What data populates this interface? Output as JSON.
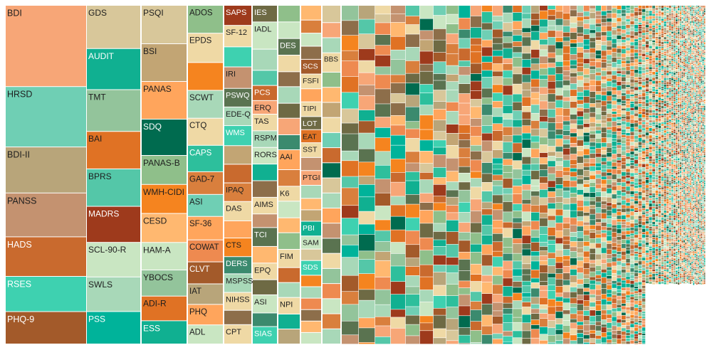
{
  "chart_data": {
    "type": "treemap",
    "palette": [
      "#f7a677",
      "#6fcfb4",
      "#b8a57a",
      "#c49270",
      "#c96a2e",
      "#3ed1b0",
      "#a35a2a",
      "#d8c79a",
      "#10b091",
      "#93c49b",
      "#e07224",
      "#54c7a8",
      "#9e3a1c",
      "#c9e6c2",
      "#a8d8b8",
      "#00b39a",
      "#c2a574",
      "#ffa55c",
      "#006b4f",
      "#8fbf8a",
      "#f5841f",
      "#ffb870",
      "#3b8a6e",
      "#6e6a44",
      "#ee8a50",
      "#5a7350",
      "#d97f3d",
      "#2dbf9c",
      "#efd9a5",
      "#8d6e4a"
    ],
    "light_text_colors": [
      "#10b091",
      "#3ed1b0",
      "#9e3a1c",
      "#006b4f",
      "#a35a2a",
      "#00b39a",
      "#3b8a6e",
      "#6e6a44",
      "#5a7350",
      "#2dbf9c",
      "#8d6e4a",
      "#c96a2e"
    ],
    "columns": [
      {
        "tiles": [
          {
            "label": "BDI",
            "value": 113,
            "color": "#f7a677"
          },
          {
            "label": "HRSD",
            "value": 84,
            "color": "#6fcfb4"
          },
          {
            "label": "BDI-II",
            "value": 64,
            "color": "#b8a57a"
          },
          {
            "label": "PANSS",
            "value": 61,
            "color": "#c49270"
          },
          {
            "label": "HADS",
            "value": 55,
            "color": "#c96a2e"
          },
          {
            "label": "RSES",
            "value": 49,
            "color": "#3ed1b0"
          },
          {
            "label": "PHQ-9",
            "value": 45,
            "color": "#a35a2a"
          }
        ]
      },
      {
        "tiles": [
          {
            "label": "GDS",
            "value": 60,
            "color": "#d8c79a"
          },
          {
            "label": "AUDIT",
            "value": 57,
            "color": "#10b091"
          },
          {
            "label": "TMT",
            "value": 58,
            "color": "#93c49b"
          },
          {
            "label": "BAI",
            "value": 52,
            "color": "#e07224"
          },
          {
            "label": "BPRS",
            "value": 52,
            "color": "#54c7a8"
          },
          {
            "label": "MADRS",
            "value": 50,
            "color": "#9e3a1c"
          },
          {
            "label": "SCL-90-R",
            "value": 48,
            "color": "#c9e6c2"
          },
          {
            "label": "SWLS",
            "value": 48,
            "color": "#a8d8b8"
          },
          {
            "label": "PSS",
            "value": 45,
            "color": "#00b39a"
          }
        ]
      },
      {
        "tiles": [
          {
            "label": "PSQI",
            "value": 53,
            "color": "#d8c79a"
          },
          {
            "label": "BSI",
            "value": 52,
            "color": "#c2a574"
          },
          {
            "label": "PANAS",
            "value": 52,
            "color": "#ffa55c"
          },
          {
            "label": "SDQ",
            "value": 50,
            "color": "#006b4f"
          },
          {
            "label": "PANAS-B",
            "value": 40,
            "color": "#8fbf8a"
          },
          {
            "label": "WMH-CIDI",
            "value": 40,
            "color": "#f5841f"
          },
          {
            "label": "CESD",
            "value": 40,
            "color": "#ffb870"
          },
          {
            "label": "HAM-A",
            "value": 38,
            "color": "#c9e6c2"
          },
          {
            "label": "YBOCS",
            "value": 36,
            "color": "#93c49b"
          },
          {
            "label": "ADI-R",
            "value": 34,
            "color": "#e07224"
          },
          {
            "label": "ESS",
            "value": 32,
            "color": "#10b091"
          }
        ]
      },
      {
        "tiles": [
          {
            "label": "ADOS",
            "value": 38,
            "color": "#8fbf8a"
          },
          {
            "label": "EPDS",
            "value": 40,
            "color": "#efd9a5"
          },
          {
            "label": "",
            "value": 38,
            "color": "#f5841f"
          },
          {
            "label": "SCWT",
            "value": 38,
            "color": "#a8d8b8"
          },
          {
            "label": "CTQ",
            "value": 37,
            "color": "#efd9a5"
          },
          {
            "label": "CAPS",
            "value": 36,
            "color": "#2dbf9c"
          },
          {
            "label": "GAD-7",
            "value": 31,
            "color": "#d97f3d"
          },
          {
            "label": "ASI",
            "value": 30,
            "color": "#6fcfb4"
          },
          {
            "label": "SF-36",
            "value": 32,
            "color": "#ffa55c"
          },
          {
            "label": "COWAT",
            "value": 30,
            "color": "#ee8a50"
          },
          {
            "label": "CLVT",
            "value": 30,
            "color": "#a35a2a"
          },
          {
            "label": "IAT",
            "value": 28,
            "color": "#b8a57a"
          },
          {
            "label": "PHQ",
            "value": 28,
            "color": "#ffa55c"
          },
          {
            "label": "ADL",
            "value": 26,
            "color": "#c9e6c2"
          }
        ]
      },
      {
        "tiles": [
          {
            "label": "SAPS",
            "value": 28,
            "color": "#9e3a1c"
          },
          {
            "label": "SF-12",
            "value": 30,
            "color": "#efd9a5"
          },
          {
            "label": "",
            "value": 28,
            "color": "#3ed1b0"
          },
          {
            "label": "IRI",
            "value": 30,
            "color": "#c49270"
          },
          {
            "label": "PSWQ",
            "value": 26,
            "color": "#5a7350"
          },
          {
            "label": "EDE-Q",
            "value": 26,
            "color": "#a8d8b8"
          },
          {
            "label": "WMS",
            "value": 28,
            "color": "#3ed1b0"
          },
          {
            "label": "",
            "value": 26,
            "color": "#c2a574"
          },
          {
            "label": "",
            "value": 26,
            "color": "#c96a2e"
          },
          {
            "label": "IPAQ",
            "value": 26,
            "color": "#d97f3d"
          },
          {
            "label": "DAS",
            "value": 27,
            "color": "#efd9a5"
          },
          {
            "label": "",
            "value": 24,
            "color": "#ffa55c"
          },
          {
            "label": "CTS",
            "value": 26,
            "color": "#f5841f"
          },
          {
            "label": "DERS",
            "value": 24,
            "color": "#3b8a6e"
          },
          {
            "label": "MSPSS",
            "value": 26,
            "color": "#a8d8b8"
          },
          {
            "label": "NIHSS",
            "value": 25,
            "color": "#efd9a5"
          },
          {
            "label": "",
            "value": 20,
            "color": "#8d6e4a"
          },
          {
            "label": "CPT",
            "value": 27,
            "color": "#efd9a5"
          }
        ]
      },
      {
        "tiles": [
          {
            "label": "IES",
            "value": 22,
            "color": "#6e6a44"
          },
          {
            "label": "IADL",
            "value": 36,
            "color": "#c9e6c2"
          },
          {
            "label": "",
            "value": 28,
            "color": "#a8d8b8"
          },
          {
            "label": "",
            "value": 20,
            "color": "#54c7a8"
          },
          {
            "label": "PCS",
            "value": 20,
            "color": "#c96a2e"
          },
          {
            "label": "ERQ",
            "value": 18,
            "color": "#f7a677"
          },
          {
            "label": "TAS",
            "value": 22,
            "color": "#efd9a5"
          },
          {
            "label": "RSPM",
            "value": 22,
            "color": "#a8d8b8"
          },
          {
            "label": "RORS",
            "value": 22,
            "color": "#c9e6c2"
          },
          {
            "label": "",
            "value": 22,
            "color": "#10b091"
          },
          {
            "label": "",
            "value": 22,
            "color": "#8d6e4a"
          },
          {
            "label": "AIMS",
            "value": 22,
            "color": "#efd9a5"
          },
          {
            "label": "",
            "value": 18,
            "color": "#c49270"
          },
          {
            "label": "TCI",
            "value": 25,
            "color": "#5a7350"
          },
          {
            "label": "",
            "value": 22,
            "color": "#ffb870"
          },
          {
            "label": "EPQ",
            "value": 22,
            "color": "#efd9a5"
          },
          {
            "label": "",
            "value": 20,
            "color": "#6e6a44"
          },
          {
            "label": "ASI",
            "value": 24,
            "color": "#c9e6c2"
          },
          {
            "label": "",
            "value": 18,
            "color": "#3b8a6e"
          },
          {
            "label": "SIAS",
            "value": 23,
            "color": "#3ed1b0"
          }
        ]
      },
      {
        "tiles": [
          {
            "label": "",
            "value": 20,
            "color": "#8fbf8a"
          },
          {
            "label": "",
            "value": 20,
            "color": "#c9e6c2"
          },
          {
            "label": "DES",
            "value": 20,
            "color": "#5a7350"
          },
          {
            "label": "",
            "value": 20,
            "color": "#efd9a5"
          },
          {
            "label": "",
            "value": 18,
            "color": "#8d6e4a"
          },
          {
            "label": "",
            "value": 20,
            "color": "#a8d8b8"
          },
          {
            "label": "",
            "value": 18,
            "color": "#6e6a44"
          },
          {
            "label": "",
            "value": 20,
            "color": "#f7a677"
          },
          {
            "label": "",
            "value": 18,
            "color": "#3b8a6e"
          },
          {
            "label": "AAI",
            "value": 24,
            "color": "#ffa55c"
          },
          {
            "label": "",
            "value": 20,
            "color": "#d97f3d"
          },
          {
            "label": "K6",
            "value": 18,
            "color": "#efd9a5"
          },
          {
            "label": "",
            "value": 20,
            "color": "#c9e6c2"
          },
          {
            "label": "",
            "value": 18,
            "color": "#ffb870"
          },
          {
            "label": "",
            "value": 20,
            "color": "#8fbf8a"
          },
          {
            "label": "FIM",
            "value": 22,
            "color": "#efd9a5"
          },
          {
            "label": "",
            "value": 18,
            "color": "#c96a2e"
          },
          {
            "label": "",
            "value": 18,
            "color": "#a8d8b8"
          },
          {
            "label": "NPI",
            "value": 20,
            "color": "#efd9a5"
          },
          {
            "label": "",
            "value": 18,
            "color": "#10b091"
          },
          {
            "label": "",
            "value": 18,
            "color": "#b8a57a"
          }
        ]
      },
      {
        "tiles": [
          {
            "label": "",
            "value": 18,
            "color": "#ffb870"
          },
          {
            "label": "",
            "value": 16,
            "color": "#d97f3d"
          },
          {
            "label": "",
            "value": 16,
            "color": "#c9e6c2"
          },
          {
            "label": "",
            "value": 16,
            "color": "#8d6e4a"
          },
          {
            "label": "SCS",
            "value": 18,
            "color": "#a35a2a"
          },
          {
            "label": "FSFI",
            "value": 18,
            "color": "#efd9a5"
          },
          {
            "label": "",
            "value": 16,
            "color": "#ffa55c"
          },
          {
            "label": "TIPI",
            "value": 18,
            "color": "#efd9a5"
          },
          {
            "label": "LOT",
            "value": 16,
            "color": "#6e6a44"
          },
          {
            "label": "EAT",
            "value": 16,
            "color": "#e07224"
          },
          {
            "label": "SST",
            "value": 18,
            "color": "#efd9a5"
          },
          {
            "label": "",
            "value": 16,
            "color": "#c49270"
          },
          {
            "label": "PTGI",
            "value": 18,
            "color": "#f7a677"
          },
          {
            "label": "",
            "value": 16,
            "color": "#a8d8b8"
          },
          {
            "label": "",
            "value": 14,
            "color": "#ffb870"
          },
          {
            "label": "",
            "value": 14,
            "color": "#c2a574"
          },
          {
            "label": "PBI",
            "value": 18,
            "color": "#10b091"
          },
          {
            "label": "SAM",
            "value": 16,
            "color": "#c9e6c2"
          },
          {
            "label": "",
            "value": 14,
            "color": "#d8c79a"
          },
          {
            "label": "SDS",
            "value": 18,
            "color": "#3ed1b0"
          },
          {
            "label": "",
            "value": 14,
            "color": "#f5841f"
          },
          {
            "label": "",
            "value": 14,
            "color": "#a8d8b8"
          },
          {
            "label": "",
            "value": 14,
            "color": "#ee8a50"
          },
          {
            "label": "",
            "value": 14,
            "color": "#8d6e4a"
          },
          {
            "label": "",
            "value": 14,
            "color": "#ffb870"
          },
          {
            "label": "",
            "value": 14,
            "color": "#c9e6c2"
          }
        ]
      },
      {
        "tiles": [
          {
            "label": "",
            "value": 16,
            "color": "#d8c79a"
          },
          {
            "label": "",
            "value": 14,
            "color": "#f7a677"
          },
          {
            "label": "",
            "value": 14,
            "color": "#a8d8b8"
          },
          {
            "label": "BBS",
            "value": 18,
            "color": "#efd9a5"
          },
          {
            "label": "",
            "value": 14,
            "color": "#8fbf8a"
          },
          {
            "label": "",
            "value": 14,
            "color": "#ffb870"
          },
          {
            "label": "",
            "value": 14,
            "color": "#c2a574"
          },
          {
            "label": "",
            "value": 14,
            "color": "#efd9a5"
          },
          {
            "label": "",
            "value": 14,
            "color": "#6fcfb4"
          },
          {
            "label": "",
            "value": 14,
            "color": "#c96a2e"
          },
          {
            "label": "",
            "value": 14,
            "color": "#006b4f"
          },
          {
            "label": "",
            "value": 14,
            "color": "#d8c79a"
          },
          {
            "label": "",
            "value": 14,
            "color": "#a8d8b8"
          },
          {
            "label": "",
            "value": 14,
            "color": "#ffa55c"
          },
          {
            "label": "",
            "value": 14,
            "color": "#c49270"
          },
          {
            "label": "",
            "value": 14,
            "color": "#5a7350"
          },
          {
            "label": "",
            "value": 14,
            "color": "#efd9a5"
          },
          {
            "label": "",
            "value": 14,
            "color": "#93c49b"
          },
          {
            "label": "",
            "value": 14,
            "color": "#ee8a50"
          },
          {
            "label": "",
            "value": 14,
            "color": "#c9e6c2"
          },
          {
            "label": "",
            "value": 14,
            "color": "#d97f3d"
          },
          {
            "label": "",
            "value": 14,
            "color": "#a8d8b8"
          }
        ]
      }
    ]
  }
}
